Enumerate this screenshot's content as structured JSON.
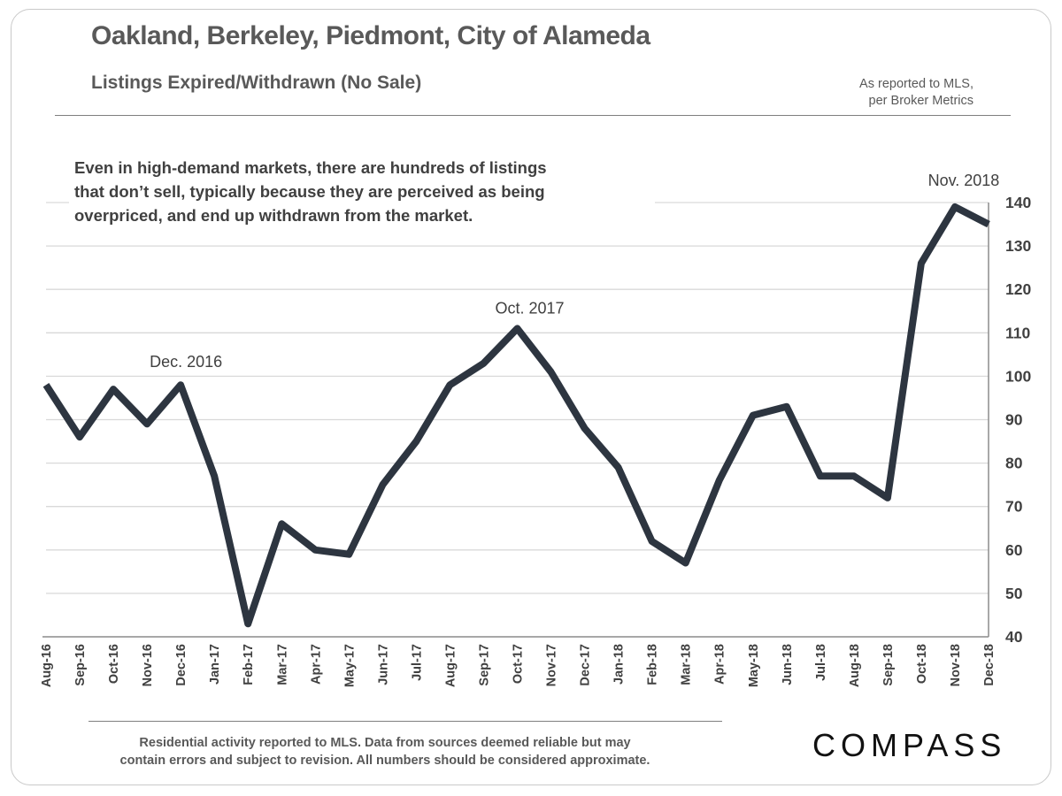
{
  "header": {
    "title": "Oakland, Berkeley, Piedmont, City of Alameda",
    "subtitle": "Listings Expired/Withdrawn (No Sale)",
    "source_line1": "As reported to MLS,",
    "source_line2": "per Broker Metrics"
  },
  "note": {
    "line1": "Even in high-demand markets, there are hundreds of listings",
    "line2": "that don’t sell, typically because they are perceived as being",
    "line3": "overpriced, and end up withdrawn from the market."
  },
  "footer": {
    "line1": "Residential activity reported to MLS. Data from sources  deemed reliable but may",
    "line2": "contain errors and subject to revision. All numbers should  be considered approximate.",
    "logo": "COMPASS"
  },
  "colors": {
    "line": "#2d3540",
    "grid": "#d9d9d9",
    "text": "#404040"
  },
  "chart_data": {
    "type": "line",
    "title": "Listings Expired/Withdrawn (No Sale)",
    "xlabel": "",
    "ylabel": "",
    "ylim": [
      40,
      140
    ],
    "yticks": [
      40,
      50,
      60,
      70,
      80,
      90,
      100,
      110,
      120,
      130,
      140
    ],
    "y_axis_side": "right",
    "grid": true,
    "categories": [
      "Aug-16",
      "Sep-16",
      "Oct-16",
      "Nov-16",
      "Dec-16",
      "Jan-17",
      "Feb-17",
      "Mar-17",
      "Apr-17",
      "May-17",
      "Jun-17",
      "Jul-17",
      "Aug-17",
      "Sep-17",
      "Oct-17",
      "Nov-17",
      "Dec-17",
      "Jan-18",
      "Feb-18",
      "Mar-18",
      "Apr-18",
      "May-18",
      "Jun-18",
      "Jul-18",
      "Aug-18",
      "Sep-18",
      "Oct-18",
      "Nov-18",
      "Dec-18"
    ],
    "values": [
      98,
      86,
      97,
      89,
      98,
      77,
      43,
      66,
      60,
      59,
      75,
      85,
      98,
      103,
      111,
      101,
      88,
      79,
      62,
      57,
      76,
      91,
      93,
      77,
      77,
      72,
      126,
      139,
      135
    ],
    "annotations": [
      {
        "text": "Dec. 2016",
        "category": "Dec-16"
      },
      {
        "text": "Oct. 2017",
        "category": "Oct-17"
      },
      {
        "text": "Nov. 2018",
        "category": "Nov-18"
      }
    ]
  }
}
